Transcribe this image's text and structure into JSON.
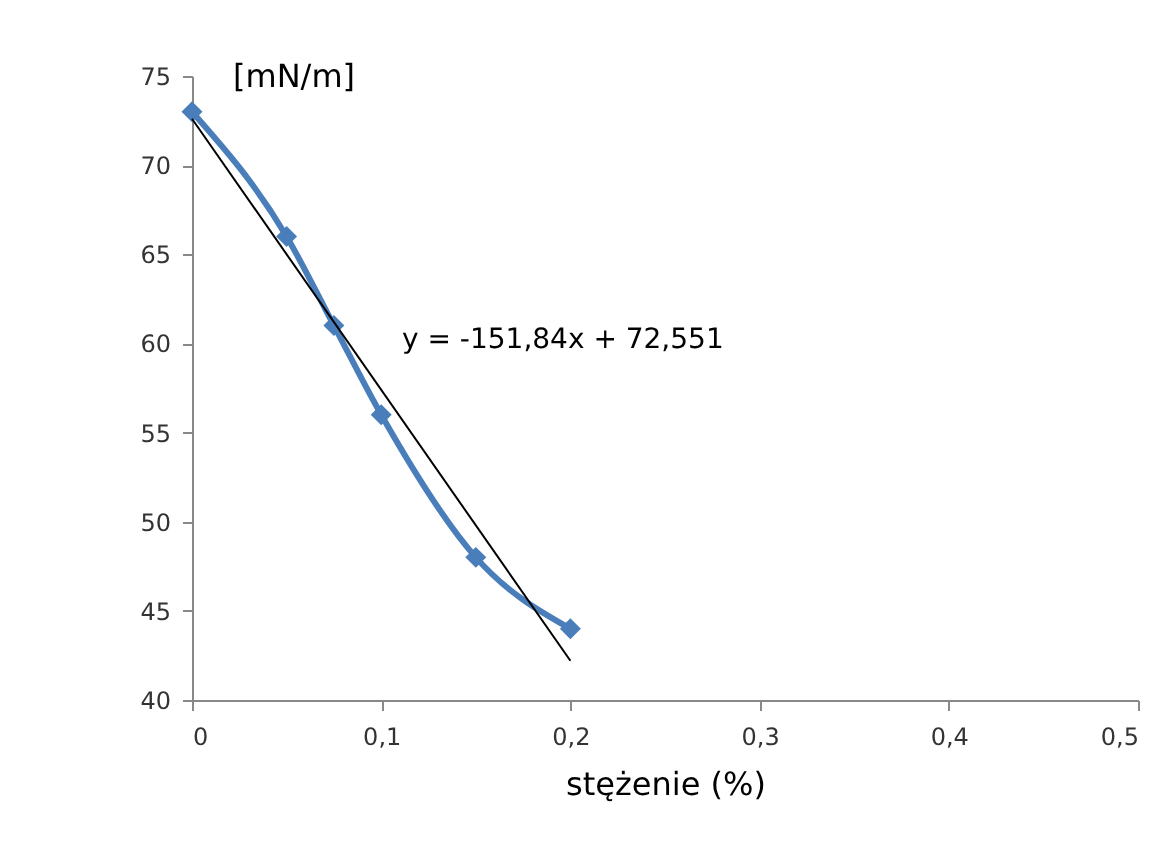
{
  "chart_data": {
    "type": "line",
    "xlabel": "stężenie (%)",
    "ylabel": "[mN/m]",
    "xlim": [
      0,
      0.5
    ],
    "xticks": [
      0,
      {
        "value": 0.1,
        "label": "0,1"
      },
      {
        "value": 0.2,
        "label": "0,2"
      },
      {
        "value": 0.3,
        "label": "0,3"
      },
      {
        "value": 0.4,
        "label": "0,4"
      },
      {
        "value": 0.5,
        "label": "0,5"
      }
    ],
    "ylim": [
      40,
      75
    ],
    "yticks": [
      40,
      45,
      50,
      55,
      60,
      65,
      70,
      75
    ],
    "grid": false,
    "x": [
      0,
      0.05,
      0.075,
      0.1,
      0.15,
      0.2
    ],
    "series": [
      {
        "color": "#4a7ebb",
        "values": [
          73,
          66,
          61,
          56,
          48,
          44
        ],
        "marker": "diamond",
        "line_style": "solid"
      },
      {
        "type": "line",
        "color": "#000000",
        "x": [
          0,
          0.2
        ],
        "values": [
          72.6,
          42.2
        ],
        "marker": "none",
        "line_style": "solid"
      }
    ],
    "annotations": [
      "y = -151,84x + 72,551"
    ]
  }
}
